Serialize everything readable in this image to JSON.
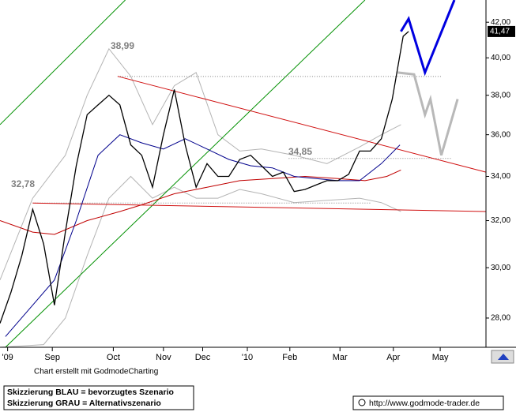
{
  "chart_data": {
    "type": "line",
    "log_y": true,
    "xlim": [
      0,
      44.6
    ],
    "ylim": [
      26.9,
      43.3
    ],
    "xticks": [
      {
        "value": 0.7,
        "label": "'09"
      },
      {
        "value": 4.8,
        "label": "Sep"
      },
      {
        "value": 10.4,
        "label": "Oct"
      },
      {
        "value": 15,
        "label": "Nov"
      },
      {
        "value": 18.6,
        "label": "Dec"
      },
      {
        "value": 22.7,
        "label": "'10"
      },
      {
        "value": 26.6,
        "label": "Feb"
      },
      {
        "value": 31.2,
        "label": "Mar"
      },
      {
        "value": 36.1,
        "label": "Apr"
      },
      {
        "value": 40.4,
        "label": "May"
      }
    ],
    "yticks": [
      {
        "value": 28,
        "label": "28,00"
      },
      {
        "value": 30,
        "label": "30,00"
      },
      {
        "value": 32,
        "label": "32,00"
      },
      {
        "value": 34,
        "label": "34,00"
      },
      {
        "value": 36,
        "label": "36,00"
      },
      {
        "value": 38,
        "label": "38,00"
      },
      {
        "value": 40,
        "label": "40,00"
      },
      {
        "value": 42,
        "label": "42,00"
      }
    ],
    "last_value": {
      "value": 41.47,
      "label": "41,47"
    },
    "annotations": [
      "38,99",
      "34,85",
      "32,78"
    ],
    "series": [
      {
        "color": "#b4b4b4",
        "width": 1,
        "x": [
          0,
          3,
          6,
          8,
          10,
          12,
          14,
          16,
          18,
          20,
          22,
          24,
          27,
          30,
          33,
          35,
          36.8
        ],
        "values": [
          29.5,
          33,
          35,
          38,
          40.5,
          39,
          36.5,
          38.5,
          39.2,
          36,
          35.2,
          35.3,
          35,
          34.6,
          35.4,
          36,
          36.5
        ]
      },
      {
        "color": "#b4b4b4",
        "width": 1,
        "x": [
          0,
          4,
          6,
          8,
          10,
          12,
          14,
          16,
          18,
          20,
          22,
          24,
          27,
          30,
          33,
          35,
          36.8
        ],
        "values": [
          26.9,
          27,
          28,
          30.5,
          33,
          34,
          33,
          33.5,
          33,
          33,
          33.4,
          33.2,
          32.8,
          32.9,
          33,
          32.8,
          32.4
        ]
      },
      {
        "color": "#009000",
        "width": 1,
        "x": [
          0.5,
          33.5
        ],
        "values": [
          26.9,
          43.3
        ]
      },
      {
        "color": "#009000",
        "width": 1,
        "x": [
          0,
          11.5
        ],
        "values": [
          36.5,
          43.3
        ]
      },
      {
        "color": "#808080",
        "width": 1,
        "dash": true,
        "x": [
          10.8,
          40.5
        ],
        "values": [
          38.99,
          38.99
        ]
      },
      {
        "color": "#808080",
        "width": 1,
        "dash": true,
        "x": [
          26.5,
          41.5
        ],
        "values": [
          34.85,
          34.85
        ]
      },
      {
        "color": "#808080",
        "width": 1,
        "dash": true,
        "x": [
          3,
          34
        ],
        "values": [
          32.78,
          32.78
        ]
      },
      {
        "color": "#d01010",
        "width": 1,
        "x": [
          10.8,
          44.6
        ],
        "values": [
          39,
          34.2
        ]
      },
      {
        "color": "#d01010",
        "width": 1,
        "x": [
          3,
          44.6
        ],
        "values": [
          32.78,
          32.4
        ]
      },
      {
        "color": "#c00000",
        "width": 1,
        "x": [
          0,
          3,
          5,
          8,
          11,
          13,
          16,
          19,
          22,
          25,
          28,
          31,
          33.5,
          35.5,
          36.8
        ],
        "values": [
          32,
          31.5,
          31.4,
          32,
          32.4,
          32.7,
          33.2,
          33.5,
          33.8,
          33.9,
          34,
          33.9,
          33.8,
          34,
          34.3
        ]
      },
      {
        "color": "#00008c",
        "width": 1,
        "x": [
          0.5,
          3,
          5,
          7,
          9,
          11,
          13,
          15,
          17,
          19,
          21,
          23,
          25,
          27,
          29,
          31,
          33,
          35,
          36.7
        ],
        "values": [
          27.3,
          28.5,
          29.5,
          32,
          35,
          36,
          35.6,
          35.3,
          35.8,
          35.3,
          34.8,
          34.5,
          34.4,
          34,
          33.9,
          33.8,
          33.8,
          34.6,
          35.5
        ]
      },
      {
        "color": "#000000",
        "width": 1.3,
        "x": [
          0,
          1,
          2,
          3,
          4,
          5,
          6,
          7,
          8,
          9,
          10,
          11,
          12,
          13,
          14,
          15,
          16,
          17,
          18,
          19,
          20,
          21,
          22,
          23,
          24,
          25,
          26,
          27,
          28,
          29,
          30,
          31,
          32,
          33,
          34,
          35,
          36,
          37,
          37.5
        ],
        "values": [
          27.8,
          29,
          30.5,
          32.5,
          31,
          28.5,
          31.5,
          34.5,
          37,
          37.5,
          38,
          37.5,
          35.5,
          35,
          33.5,
          36,
          38.3,
          35.5,
          33.5,
          34.6,
          34,
          34,
          34.8,
          35,
          34.5,
          34,
          34.2,
          33.3,
          33.4,
          33.6,
          33.8,
          33.8,
          34.1,
          35.2,
          35.2,
          35.8,
          37.8,
          41.2,
          41.47
        ]
      },
      {
        "color": "#b8b8b8",
        "width": 3,
        "x": [
          36.5,
          38,
          39,
          39.5,
          40.5,
          42
        ],
        "values": [
          39.2,
          39.1,
          37,
          37.8,
          35,
          37.8
        ]
      },
      {
        "color": "#0000e0",
        "width": 3,
        "x": [
          36.8,
          37.5,
          39,
          41.7
        ],
        "values": [
          41.47,
          42.2,
          39.2,
          43.3
        ]
      }
    ]
  },
  "footer": {
    "credit": "Chart erstellt mit GodmodeCharting",
    "line1": "Skizzierung BLAU = bevorzugtes Szenario",
    "line2": "Skizzierung GRAU = Alternativszenario",
    "url": "http://www.godmode-trader.de"
  }
}
